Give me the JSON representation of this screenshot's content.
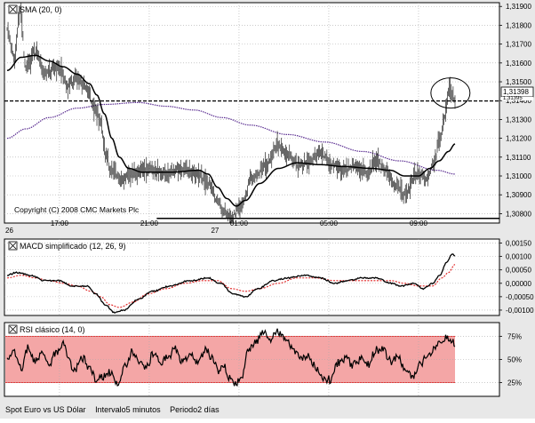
{
  "colors": {
    "price": "#000000",
    "sma": "#000000",
    "long_ma": "#5a2d91",
    "macd_line": "#000000",
    "macd_signal": "#e02020",
    "rsi_band_fill": "#f4a6a6",
    "rsi_band_edge": "#e02020",
    "grid": "#aaaaaa"
  },
  "footer": {
    "instrument": "Spot Euro vs US Dólar",
    "interval": "Intervalo5 minutos",
    "period": "Periodo2 días"
  },
  "chart_data": [
    {
      "type": "line",
      "panel": "price",
      "title_box": "SMA (20, 0)",
      "copyright": "Copyright (C) 2008 CMC Markets Plc",
      "ylim": [
        1.3075,
        1.3192
      ],
      "y_ticks": [
        "1,31900",
        "1,31800",
        "1,31700",
        "1,31600",
        "1,31500",
        "1,31400",
        "1,31300",
        "1,31200",
        "1,31100",
        "1,31000",
        "1,30900",
        "1,30800"
      ],
      "y_tick_values": [
        1.319,
        1.318,
        1.317,
        1.316,
        1.315,
        1.314,
        1.313,
        1.312,
        1.311,
        1.31,
        1.309,
        1.308
      ],
      "x_ticks": [
        "17:00",
        "21:00",
        "01:00",
        "05:00",
        "09:00"
      ],
      "x_tick_index": [
        56,
        152,
        248,
        344,
        440
      ],
      "date_labels": [
        {
          "text": "26",
          "index": 0
        },
        {
          "text": "27",
          "index": 220
        }
      ],
      "n_points": 480,
      "current_price_label": "1,31398",
      "current_price_stub": "1,31395",
      "current_price": 1.31398,
      "support_level": 1.30775,
      "support_from_index": 160,
      "highlight_index": 476,
      "price_anchors": [
        [
          0,
          1.3178
        ],
        [
          8,
          1.3162
        ],
        [
          14,
          1.3188
        ],
        [
          20,
          1.3158
        ],
        [
          30,
          1.3166
        ],
        [
          42,
          1.3154
        ],
        [
          55,
          1.3158
        ],
        [
          65,
          1.3148
        ],
        [
          75,
          1.3152
        ],
        [
          85,
          1.3146
        ],
        [
          95,
          1.3135
        ],
        [
          100,
          1.3128
        ],
        [
          105,
          1.3112
        ],
        [
          112,
          1.3102
        ],
        [
          122,
          1.3098
        ],
        [
          135,
          1.3102
        ],
        [
          150,
          1.3103
        ],
        [
          170,
          1.3102
        ],
        [
          190,
          1.3104
        ],
        [
          205,
          1.31
        ],
        [
          215,
          1.3096
        ],
        [
          225,
          1.3087
        ],
        [
          232,
          1.3082
        ],
        [
          240,
          1.3078
        ],
        [
          250,
          1.3084
        ],
        [
          262,
          1.3099
        ],
        [
          275,
          1.3105
        ],
        [
          290,
          1.3116
        ],
        [
          300,
          1.3111
        ],
        [
          312,
          1.3106
        ],
        [
          325,
          1.3108
        ],
        [
          335,
          1.3112
        ],
        [
          348,
          1.3106
        ],
        [
          360,
          1.3103
        ],
        [
          372,
          1.3105
        ],
        [
          385,
          1.3102
        ],
        [
          395,
          1.3108
        ],
        [
          405,
          1.3102
        ],
        [
          415,
          1.3096
        ],
        [
          425,
          1.309
        ],
        [
          438,
          1.3101
        ],
        [
          448,
          1.3099
        ],
        [
          456,
          1.3106
        ],
        [
          462,
          1.3118
        ],
        [
          468,
          1.3132
        ],
        [
          473,
          1.3147
        ],
        [
          476,
          1.3143
        ],
        [
          479,
          1.314
        ]
      ],
      "sma_anchors": [
        [
          0,
          1.3156
        ],
        [
          15,
          1.3163
        ],
        [
          30,
          1.3164
        ],
        [
          45,
          1.3161
        ],
        [
          60,
          1.3158
        ],
        [
          75,
          1.3154
        ],
        [
          88,
          1.3149
        ],
        [
          96,
          1.3143
        ],
        [
          104,
          1.3133
        ],
        [
          112,
          1.312
        ],
        [
          120,
          1.311
        ],
        [
          130,
          1.3104
        ],
        [
          145,
          1.3102
        ],
        [
          175,
          1.3102
        ],
        [
          205,
          1.3103
        ],
        [
          215,
          1.3101
        ],
        [
          225,
          1.3094
        ],
        [
          235,
          1.3088
        ],
        [
          245,
          1.3084
        ],
        [
          255,
          1.3087
        ],
        [
          270,
          1.3096
        ],
        [
          290,
          1.3104
        ],
        [
          310,
          1.3107
        ],
        [
          335,
          1.3106
        ],
        [
          360,
          1.3105
        ],
        [
          390,
          1.3104
        ],
        [
          410,
          1.3103
        ],
        [
          425,
          1.31
        ],
        [
          440,
          1.31
        ],
        [
          452,
          1.3104
        ],
        [
          462,
          1.3108
        ],
        [
          472,
          1.3113
        ],
        [
          479,
          1.3117
        ]
      ],
      "long_ma_anchors": [
        [
          0,
          1.312
        ],
        [
          20,
          1.3125
        ],
        [
          45,
          1.3131
        ],
        [
          75,
          1.3136
        ],
        [
          105,
          1.3138
        ],
        [
          140,
          1.3139
        ],
        [
          170,
          1.3137
        ],
        [
          200,
          1.3135
        ],
        [
          230,
          1.3131
        ],
        [
          260,
          1.3127
        ],
        [
          300,
          1.3122
        ],
        [
          340,
          1.3118
        ],
        [
          380,
          1.3113
        ],
        [
          420,
          1.3108
        ],
        [
          460,
          1.3103
        ],
        [
          479,
          1.3101
        ]
      ]
    },
    {
      "type": "line",
      "panel": "macd",
      "title_box": "MACD simplificado (12, 26, 9)",
      "ylim": [
        -0.0012,
        0.00165
      ],
      "y_ticks": [
        "0,00150",
        "0,00100",
        "0,00050",
        "0,00000",
        "-0,00050",
        "-0,00100"
      ],
      "y_tick_values": [
        0.0015,
        0.001,
        0.0005,
        0,
        -0.0005,
        -0.001
      ],
      "series": [
        {
          "name": "macd",
          "anchors": [
            [
              0,
              0.0003
            ],
            [
              10,
              0.0004
            ],
            [
              25,
              0.0003
            ],
            [
              40,
              0.0001
            ],
            [
              55,
              0.0001
            ],
            [
              70,
              -0.0001
            ],
            [
              85,
              -0.0001
            ],
            [
              95,
              -0.0004
            ],
            [
              105,
              -0.0008
            ],
            [
              115,
              -0.0011
            ],
            [
              125,
              -0.001
            ],
            [
              140,
              -0.0006
            ],
            [
              155,
              -0.0003
            ],
            [
              175,
              -0.0001
            ],
            [
              195,
              0.0001
            ],
            [
              215,
              0.0002
            ],
            [
              228,
              0.0
            ],
            [
              242,
              -0.0004
            ],
            [
              255,
              -0.0005
            ],
            [
              268,
              -0.0002
            ],
            [
              285,
              0.0001
            ],
            [
              300,
              0.0002
            ],
            [
              318,
              0.0003
            ],
            [
              335,
              0.0002
            ],
            [
              350,
              0.0
            ],
            [
              365,
              0.0001
            ],
            [
              380,
              0.0002
            ],
            [
              395,
              0.0002
            ],
            [
              410,
              0.0
            ],
            [
              422,
              -0.0001
            ],
            [
              435,
              0.0
            ],
            [
              445,
              -0.0002
            ],
            [
              455,
              0.0
            ],
            [
              463,
              0.0003
            ],
            [
              470,
              0.0008
            ],
            [
              476,
              0.0011
            ],
            [
              479,
              0.001
            ]
          ]
        },
        {
          "name": "signal",
          "anchors": [
            [
              0,
              0.0002
            ],
            [
              15,
              0.0003
            ],
            [
              30,
              0.0002
            ],
            [
              45,
              0.0001
            ],
            [
              60,
              0.0
            ],
            [
              75,
              -0.0001
            ],
            [
              90,
              -0.0003
            ],
            [
              100,
              -0.0005
            ],
            [
              110,
              -0.0008
            ],
            [
              120,
              -0.0009
            ],
            [
              135,
              -0.0007
            ],
            [
              150,
              -0.0004
            ],
            [
              170,
              -0.0002
            ],
            [
              190,
              0.0
            ],
            [
              210,
              0.0001
            ],
            [
              225,
              0.0001
            ],
            [
              240,
              -0.0002
            ],
            [
              255,
              -0.0003
            ],
            [
              270,
              -0.0002
            ],
            [
              290,
              0.0
            ],
            [
              310,
              0.0002
            ],
            [
              330,
              0.0002
            ],
            [
              350,
              0.0001
            ],
            [
              370,
              0.0001
            ],
            [
              390,
              0.0001
            ],
            [
              410,
              0.0001
            ],
            [
              425,
              0.0
            ],
            [
              440,
              -0.0001
            ],
            [
              455,
              -0.0001
            ],
            [
              465,
              0.0002
            ],
            [
              472,
              0.0004
            ],
            [
              479,
              0.0007
            ]
          ]
        }
      ]
    },
    {
      "type": "line",
      "panel": "rsi",
      "title_box": "RSI clásico (14, 0)",
      "ylim": [
        10,
        90
      ],
      "y_ticks": [
        "75%",
        "50%",
        "25%"
      ],
      "y_tick_values": [
        75,
        50,
        25
      ],
      "band": [
        25,
        75
      ],
      "anchors": [
        [
          0,
          52
        ],
        [
          8,
          58
        ],
        [
          15,
          40
        ],
        [
          22,
          62
        ],
        [
          30,
          48
        ],
        [
          38,
          60
        ],
        [
          45,
          44
        ],
        [
          52,
          58
        ],
        [
          60,
          66
        ],
        [
          66,
          48
        ],
        [
          72,
          38
        ],
        [
          80,
          52
        ],
        [
          88,
          42
        ],
        [
          95,
          28
        ],
        [
          102,
          30
        ],
        [
          110,
          36
        ],
        [
          118,
          22
        ],
        [
          126,
          44
        ],
        [
          134,
          58
        ],
        [
          140,
          50
        ],
        [
          148,
          40
        ],
        [
          156,
          55
        ],
        [
          164,
          48
        ],
        [
          172,
          52
        ],
        [
          180,
          62
        ],
        [
          188,
          46
        ],
        [
          196,
          58
        ],
        [
          204,
          44
        ],
        [
          212,
          60
        ],
        [
          220,
          52
        ],
        [
          226,
          38
        ],
        [
          232,
          42
        ],
        [
          238,
          30
        ],
        [
          244,
          22
        ],
        [
          250,
          30
        ],
        [
          258,
          58
        ],
        [
          266,
          70
        ],
        [
          274,
          78
        ],
        [
          282,
          72
        ],
        [
          290,
          80
        ],
        [
          298,
          74
        ],
        [
          306,
          62
        ],
        [
          314,
          50
        ],
        [
          322,
          56
        ],
        [
          330,
          42
        ],
        [
          338,
          30
        ],
        [
          346,
          28
        ],
        [
          354,
          46
        ],
        [
          362,
          52
        ],
        [
          370,
          44
        ],
        [
          378,
          50
        ],
        [
          386,
          44
        ],
        [
          394,
          60
        ],
        [
          402,
          62
        ],
        [
          410,
          48
        ],
        [
          418,
          52
        ],
        [
          426,
          38
        ],
        [
          434,
          30
        ],
        [
          442,
          44
        ],
        [
          450,
          56
        ],
        [
          458,
          64
        ],
        [
          466,
          72
        ],
        [
          472,
          74
        ],
        [
          476,
          70
        ],
        [
          479,
          68
        ]
      ]
    }
  ]
}
